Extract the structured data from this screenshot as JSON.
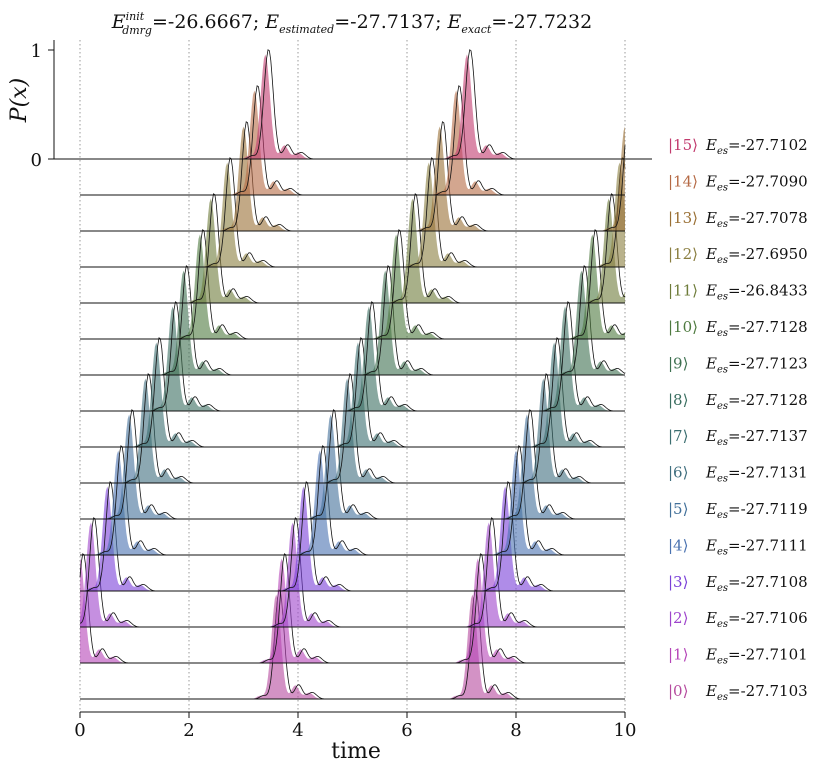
{
  "chart_data": {
    "type": "area",
    "title": "E_dmrg^init=-26.6667; E_estimated=-27.7137; E_exact=-27.7232",
    "title_parts": {
      "e1": "E",
      "e1_sub": "dmrg",
      "e1_sup": "init",
      "e1_val": "=-26.6667;",
      "e2": "E",
      "e2_sub": "estimated",
      "e2_val": "=-27.7137;",
      "e3": "E",
      "e3_sub": "exact",
      "e3_val": "=-27.7232"
    },
    "xlabel": "time",
    "ylabel": "P(x)",
    "xlim": [
      0,
      10
    ],
    "ylim": [
      0,
      1
    ],
    "x_ticks": [
      "0",
      "2",
      "4",
      "6",
      "8",
      "10"
    ],
    "y_ticks": [
      "0",
      "1"
    ],
    "grid": "vertical dotted at x = 0, 2, 4, 6, 8, 10",
    "energy_prefix": "E",
    "energy_sub": "es",
    "series": [
      {
        "name": "|15⟩",
        "label": "|15⟩",
        "energy": "=-27.7102",
        "color": "#c23b6e",
        "peaks": [
          3.4,
          7.1
        ]
      },
      {
        "name": "|14⟩",
        "label": "|14⟩",
        "energy": "=-27.7090",
        "color": "#b56a45",
        "peaks": [
          3.2,
          6.9
        ]
      },
      {
        "name": "|13⟩",
        "label": "|13⟩",
        "energy": "=-27.7078",
        "color": "#9a7035",
        "peaks": [
          3.0,
          6.6,
          10.0
        ]
      },
      {
        "name": "|12⟩",
        "label": "|12⟩",
        "energy": "=-27.6950",
        "color": "#8a7e40",
        "peaks": [
          2.7,
          6.4,
          9.9
        ]
      },
      {
        "name": "|11⟩",
        "label": "|11⟩",
        "energy": "=-26.8433",
        "color": "#6e7c3a",
        "peaks": [
          2.4,
          6.1,
          9.7
        ]
      },
      {
        "name": "|10⟩",
        "label": "|10⟩",
        "energy": "=-27.7128",
        "color": "#4e7a3f",
        "peaks": [
          2.2,
          5.8,
          9.4
        ]
      },
      {
        "name": "|9⟩",
        "label": "|9⟩",
        "energy": "=-27.7123",
        "color": "#3d7050",
        "peaks": [
          1.9,
          5.6,
          9.2
        ]
      },
      {
        "name": "|8⟩",
        "label": "|8⟩",
        "energy": "=-27.7128",
        "color": "#3a6e60",
        "peaks": [
          1.7,
          5.3,
          8.9
        ]
      },
      {
        "name": "|7⟩",
        "label": "|7⟩",
        "energy": "=-27.7137",
        "color": "#3b6e70",
        "peaks": [
          1.4,
          5.1,
          8.7
        ]
      },
      {
        "name": "|6⟩",
        "label": "|6⟩",
        "energy": "=-27.7131",
        "color": "#3f6e7e",
        "peaks": [
          1.2,
          4.9,
          8.5
        ]
      },
      {
        "name": "|5⟩",
        "label": "|5⟩",
        "energy": "=-27.7119",
        "color": "#42709a",
        "peaks": [
          0.9,
          4.6,
          8.2
        ]
      },
      {
        "name": "|4⟩",
        "label": "|4⟩",
        "energy": "=-27.7111",
        "color": "#4a72b0",
        "peaks": [
          0.7,
          4.4,
          8.0
        ]
      },
      {
        "name": "|3⟩",
        "label": "|3⟩",
        "energy": "=-27.7108",
        "color": "#7a40d8",
        "peaks": [
          0.5,
          4.1,
          7.8
        ]
      },
      {
        "name": "|2⟩",
        "label": "|2⟩",
        "energy": "=-27.7106",
        "color": "#9e45cc",
        "peaks": [
          0.2,
          3.9,
          7.5
        ]
      },
      {
        "name": "|1⟩",
        "label": "|1⟩",
        "energy": "=-27.7101",
        "color": "#b545b8",
        "peaks": [
          0.0,
          3.7,
          7.3
        ]
      },
      {
        "name": "|0⟩",
        "label": "|0⟩",
        "energy": "=-27.7103",
        "color": "#b54a9e",
        "peaks": [
          3.6,
          7.2
        ]
      }
    ]
  }
}
